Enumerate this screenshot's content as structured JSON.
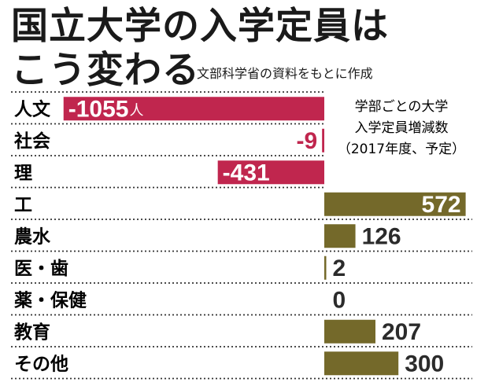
{
  "header": {
    "title_line1": "国立大学の入学定員は",
    "title_line2": "こう変わる",
    "source": "文部科学省の資料をもとに作成"
  },
  "chart_data": {
    "type": "bar",
    "orientation": "horizontal-diverging",
    "note": [
      "学部ごとの大学",
      "入学定員増減数",
      "（2017年度、予定）"
    ],
    "categories": [
      "人文",
      "社会",
      "理",
      "工",
      "農水",
      "医・歯",
      "薬・保健",
      "教育",
      "その他"
    ],
    "values": [
      -1055,
      -9,
      -431,
      572,
      126,
      2,
      0,
      207,
      300
    ],
    "value_labels": [
      "-1055",
      "-9",
      "-431",
      "572",
      "126",
      "2",
      "0",
      "207",
      "300"
    ],
    "unit_label": "人",
    "colors": {
      "negative": "#c0264e",
      "positive": "#74692a"
    },
    "xlim": [
      -1055,
      572
    ]
  }
}
